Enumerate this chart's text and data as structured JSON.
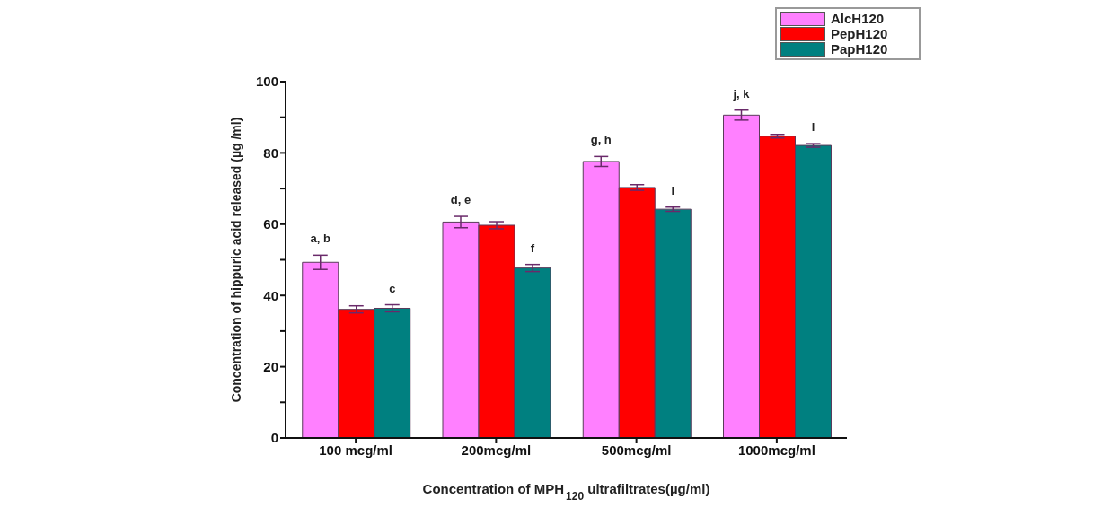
{
  "chart_data": {
    "type": "bar",
    "xlabel": "Concentration of MPH$_{120}$ ultrafiltrates(µg/ml)",
    "ylabel": "Concentration of hippuric acid released (µg /ml)",
    "categories": [
      "100 mcg/ml",
      "200mcg/ml",
      "500mcg/ml",
      "1000mcg/ml"
    ],
    "series": [
      {
        "name": "AlcH120",
        "color": "#ff80ff",
        "values": [
          49.3,
          60.6,
          77.6,
          90.6
        ],
        "errors": [
          2,
          1.6,
          1.4,
          1.4
        ]
      },
      {
        "name": "PepH120",
        "color": "#ff0000",
        "values": [
          36.1,
          59.7,
          70.3,
          84.7
        ],
        "errors": [
          1,
          1,
          0.8,
          0.5
        ]
      },
      {
        "name": "PapH120",
        "color": "#008080",
        "values": [
          36.4,
          47.7,
          64.2,
          82.1
        ],
        "errors": [
          1,
          1,
          0.6,
          0.5
        ]
      }
    ],
    "ylim": [
      0,
      100
    ],
    "yticks": [
      0,
      {
        "value": 10,
        "label": null
      },
      20,
      {
        "value": 30,
        "label": null
      },
      40,
      {
        "value": 50,
        "label": null
      },
      60,
      {
        "value": 70,
        "label": null
      },
      80,
      {
        "value": 90,
        "label": null
      },
      100
    ],
    "annotations": [
      "a, b",
      "c",
      "d, e",
      "f",
      "g, h",
      "i",
      "j, k",
      "l"
    ],
    "grid": false,
    "legend": "top right"
  }
}
